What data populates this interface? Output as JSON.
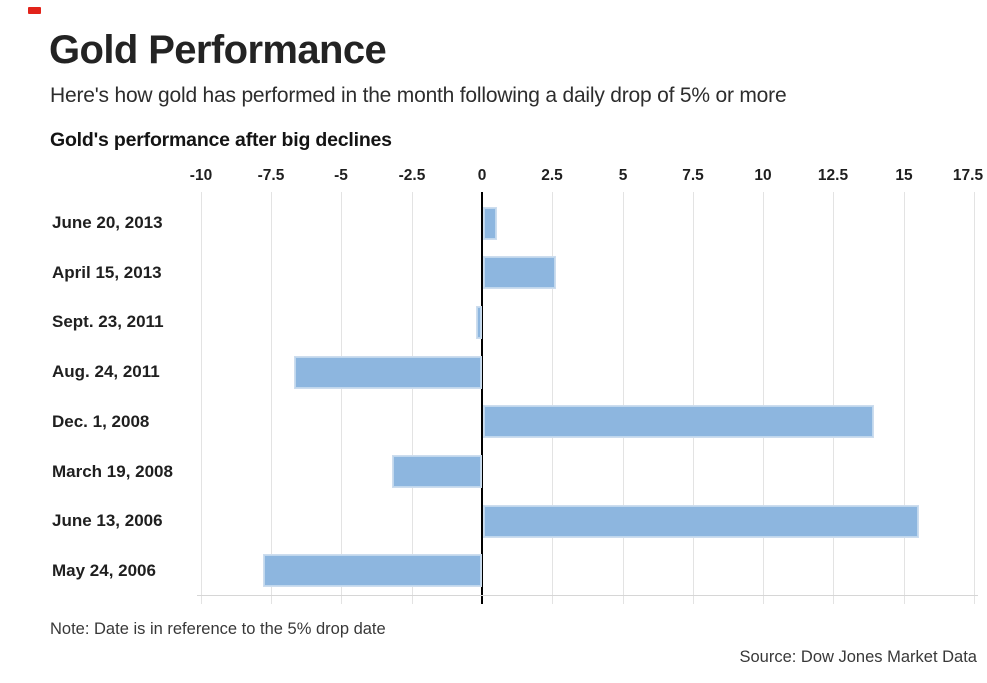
{
  "brand_mark": {
    "color": "#e2231a"
  },
  "header": {
    "title": "Gold Performance",
    "subtitle": "Here's how gold has performed in the month following a daily drop of 5% or more"
  },
  "chart_data": {
    "type": "bar",
    "orientation": "horizontal",
    "title": "Gold's performance after big declines",
    "categories": [
      "June 20, 2013",
      "April 15, 2013",
      "Sept. 23, 2011",
      "Aug. 24, 2011",
      "Dec. 1, 2008",
      "March 19, 2008",
      "June 13, 2006",
      "May 24, 2006"
    ],
    "values": [
      0.5,
      2.6,
      -0.2,
      -6.7,
      13.9,
      -3.2,
      15.5,
      -7.8
    ],
    "x_ticks": [
      -10,
      -7.5,
      -5,
      -2.5,
      0,
      2.5,
      5,
      7.5,
      10,
      12.5,
      15,
      17.5
    ],
    "xlim": [
      -11,
      18
    ],
    "grid": true,
    "legend": false,
    "bar_color": "#8db6df",
    "bar_edge_color": "#cdddee",
    "zero_axis_color": "#000000"
  },
  "footer": {
    "note": "Note: Date is in reference to the 5% drop date",
    "source": "Source: Dow Jones Market Data"
  }
}
